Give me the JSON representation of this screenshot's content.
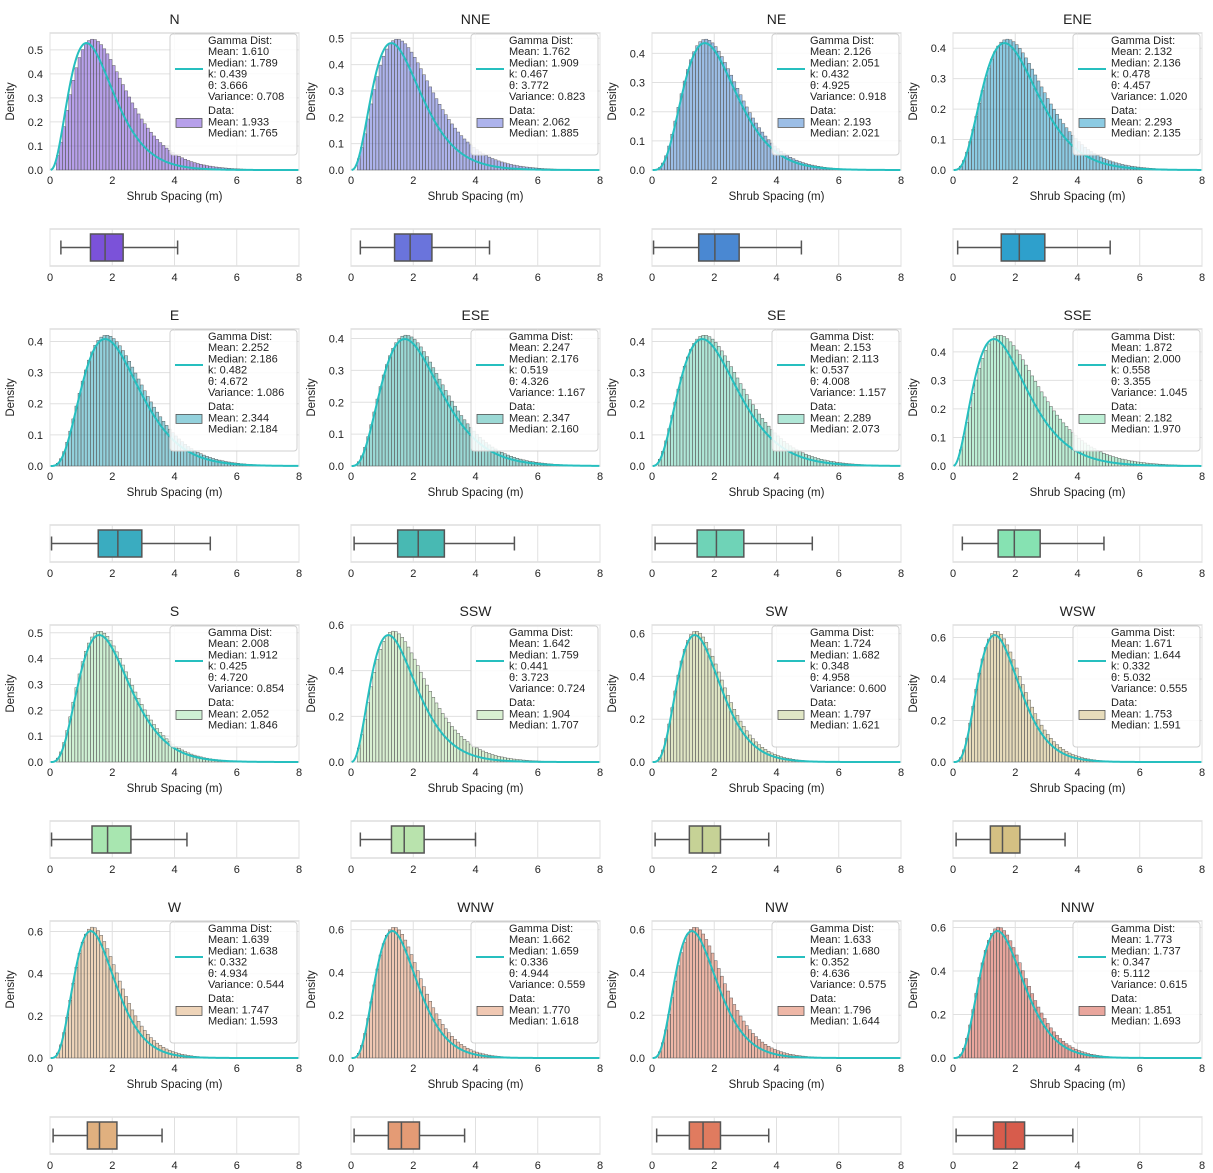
{
  "chart_data": {
    "type": "histogram-boxplot-grid",
    "density_label": "Density",
    "xlabel": "Shrub Spacing (m)",
    "xlim": [
      0,
      8
    ],
    "xticks": [
      0,
      2,
      4,
      6,
      8
    ],
    "fit_color": "#26bfbf",
    "legend_gamma_title": "Gamma Dist:",
    "legend_data_title": "Data:",
    "labels": {
      "mean": "Mean:",
      "median": "Median:",
      "k": "k:",
      "theta": "θ:",
      "variance": "Variance:"
    },
    "panels": [
      {
        "title": "N",
        "color": "#7b52d9",
        "ylim": [
          0,
          0.57
        ],
        "yticks": [
          0.0,
          0.1,
          0.2,
          0.3,
          0.4,
          0.5
        ],
        "gamma": {
          "mean": "1.610",
          "median": "1.789",
          "k": "0.439",
          "theta": "3.666",
          "variance": "0.708"
        },
        "data": {
          "mean": "1.933",
          "median": "1.765"
        },
        "box": {
          "whislo": 0.35,
          "q1": 1.3,
          "med": 1.77,
          "q3": 2.35,
          "whishi": 4.1
        }
      },
      {
        "title": "NNE",
        "color": "#6a74dc",
        "ylim": [
          0,
          0.52
        ],
        "yticks": [
          0.0,
          0.1,
          0.2,
          0.3,
          0.4,
          0.5
        ],
        "gamma": {
          "mean": "1.762",
          "median": "1.909",
          "k": "0.467",
          "theta": "3.772",
          "variance": "0.823"
        },
        "data": {
          "mean": "2.062",
          "median": "1.885"
        },
        "box": {
          "whislo": 0.3,
          "q1": 1.4,
          "med": 1.9,
          "q3": 2.6,
          "whishi": 4.45
        }
      },
      {
        "title": "NE",
        "color": "#4a88d2",
        "ylim": [
          0,
          0.47
        ],
        "yticks": [
          0.0,
          0.1,
          0.2,
          0.3,
          0.4
        ],
        "gamma": {
          "mean": "2.126",
          "median": "2.051",
          "k": "0.432",
          "theta": "4.925",
          "variance": "0.918"
        },
        "data": {
          "mean": "2.193",
          "median": "2.021"
        },
        "box": {
          "whislo": 0.05,
          "q1": 1.5,
          "med": 2.02,
          "q3": 2.8,
          "whishi": 4.8
        }
      },
      {
        "title": "ENE",
        "color": "#2ea0cc",
        "ylim": [
          0,
          0.45
        ],
        "yticks": [
          0.0,
          0.1,
          0.2,
          0.3,
          0.4
        ],
        "gamma": {
          "mean": "2.132",
          "median": "2.136",
          "k": "0.478",
          "theta": "4.457",
          "variance": "1.020"
        },
        "data": {
          "mean": "2.293",
          "median": "2.135"
        },
        "box": {
          "whislo": 0.15,
          "q1": 1.55,
          "med": 2.13,
          "q3": 2.95,
          "whishi": 5.05
        }
      },
      {
        "title": "E",
        "color": "#3aacc0",
        "ylim": [
          0,
          0.44
        ],
        "yticks": [
          0.0,
          0.1,
          0.2,
          0.3,
          0.4
        ],
        "gamma": {
          "mean": "2.252",
          "median": "2.186",
          "k": "0.482",
          "theta": "4.672",
          "variance": "1.086"
        },
        "data": {
          "mean": "2.344",
          "median": "2.184"
        },
        "box": {
          "whislo": 0.05,
          "q1": 1.55,
          "med": 2.18,
          "q3": 2.95,
          "whishi": 5.15
        }
      },
      {
        "title": "ESE",
        "color": "#48b9b3",
        "ylim": [
          0,
          0.43
        ],
        "yticks": [
          0.0,
          0.1,
          0.2,
          0.3,
          0.4
        ],
        "gamma": {
          "mean": "2.247",
          "median": "2.176",
          "k": "0.519",
          "theta": "4.326",
          "variance": "1.167"
        },
        "data": {
          "mean": "2.347",
          "median": "2.160"
        },
        "box": {
          "whislo": 0.1,
          "q1": 1.5,
          "med": 2.16,
          "q3": 3.0,
          "whishi": 5.25
        }
      },
      {
        "title": "SE",
        "color": "#6fd3b7",
        "ylim": [
          0,
          0.44
        ],
        "yticks": [
          0.0,
          0.1,
          0.2,
          0.3,
          0.4
        ],
        "gamma": {
          "mean": "2.153",
          "median": "2.113",
          "k": "0.537",
          "theta": "4.008",
          "variance": "1.157"
        },
        "data": {
          "mean": "2.289",
          "median": "2.073"
        },
        "box": {
          "whislo": 0.1,
          "q1": 1.45,
          "med": 2.07,
          "q3": 2.95,
          "whishi": 5.15
        }
      },
      {
        "title": "SSE",
        "color": "#86e2b2",
        "ylim": [
          0,
          0.48
        ],
        "yticks": [
          0.0,
          0.1,
          0.2,
          0.3,
          0.4
        ],
        "gamma": {
          "mean": "1.872",
          "median": "2.000",
          "k": "0.558",
          "theta": "3.355",
          "variance": "1.045"
        },
        "data": {
          "mean": "2.182",
          "median": "1.970"
        },
        "box": {
          "whislo": 0.3,
          "q1": 1.45,
          "med": 1.97,
          "q3": 2.8,
          "whishi": 4.85
        }
      },
      {
        "title": "S",
        "color": "#a8e6b0",
        "ylim": [
          0,
          0.53
        ],
        "yticks": [
          0.0,
          0.1,
          0.2,
          0.3,
          0.4,
          0.5
        ],
        "gamma": {
          "mean": "2.008",
          "median": "1.912",
          "k": "0.425",
          "theta": "4.720",
          "variance": "0.854"
        },
        "data": {
          "mean": "2.052",
          "median": "1.846"
        },
        "box": {
          "whislo": 0.05,
          "q1": 1.35,
          "med": 1.85,
          "q3": 2.6,
          "whishi": 4.4
        }
      },
      {
        "title": "SSW",
        "color": "#b9e3ad",
        "ylim": [
          0,
          0.6
        ],
        "yticks": [
          0.0,
          0.2,
          0.4,
          0.6
        ],
        "gamma": {
          "mean": "1.642",
          "median": "1.759",
          "k": "0.441",
          "theta": "3.723",
          "variance": "0.724"
        },
        "data": {
          "mean": "1.904",
          "median": "1.707"
        },
        "box": {
          "whislo": 0.3,
          "q1": 1.3,
          "med": 1.71,
          "q3": 2.35,
          "whishi": 4.0
        }
      },
      {
        "title": "SW",
        "color": "#c6d296",
        "ylim": [
          0,
          0.64
        ],
        "yticks": [
          0.0,
          0.2,
          0.4,
          0.6
        ],
        "gamma": {
          "mean": "1.724",
          "median": "1.682",
          "k": "0.348",
          "theta": "4.958",
          "variance": "0.600"
        },
        "data": {
          "mean": "1.797",
          "median": "1.621"
        },
        "box": {
          "whislo": 0.1,
          "q1": 1.2,
          "med": 1.62,
          "q3": 2.2,
          "whishi": 3.75
        }
      },
      {
        "title": "WSW",
        "color": "#d4c083",
        "ylim": [
          0,
          0.66
        ],
        "yticks": [
          0.0,
          0.2,
          0.4,
          0.6
        ],
        "gamma": {
          "mean": "1.671",
          "median": "1.644",
          "k": "0.332",
          "theta": "5.032",
          "variance": "0.555"
        },
        "data": {
          "mean": "1.753",
          "median": "1.591"
        },
        "box": {
          "whislo": 0.1,
          "q1": 1.2,
          "med": 1.59,
          "q3": 2.15,
          "whishi": 3.6
        }
      },
      {
        "title": "W",
        "color": "#e0b07f",
        "ylim": [
          0,
          0.65
        ],
        "yticks": [
          0.0,
          0.2,
          0.4,
          0.6
        ],
        "gamma": {
          "mean": "1.639",
          "median": "1.638",
          "k": "0.332",
          "theta": "4.934",
          "variance": "0.544"
        },
        "data": {
          "mean": "1.747",
          "median": "1.593"
        },
        "box": {
          "whislo": 0.1,
          "q1": 1.2,
          "med": 1.59,
          "q3": 2.15,
          "whishi": 3.6
        }
      },
      {
        "title": "WNW",
        "color": "#e49b75",
        "ylim": [
          0,
          0.64
        ],
        "yticks": [
          0.0,
          0.2,
          0.4,
          0.6
        ],
        "gamma": {
          "mean": "1.662",
          "median": "1.659",
          "k": "0.336",
          "theta": "4.944",
          "variance": "0.559"
        },
        "data": {
          "mean": "1.770",
          "median": "1.618"
        },
        "box": {
          "whislo": 0.1,
          "q1": 1.2,
          "med": 1.62,
          "q3": 2.2,
          "whishi": 3.65
        }
      },
      {
        "title": "NW",
        "color": "#e07b5f",
        "ylim": [
          0,
          0.64
        ],
        "yticks": [
          0.0,
          0.2,
          0.4,
          0.6
        ],
        "gamma": {
          "mean": "1.633",
          "median": "1.680",
          "k": "0.352",
          "theta": "4.636",
          "variance": "0.575"
        },
        "data": {
          "mean": "1.796",
          "median": "1.644"
        },
        "box": {
          "whislo": 0.15,
          "q1": 1.2,
          "med": 1.64,
          "q3": 2.2,
          "whishi": 3.75
        }
      },
      {
        "title": "NNW",
        "color": "#d75c4c",
        "ylim": [
          0,
          0.63
        ],
        "yticks": [
          0.0,
          0.2,
          0.4,
          0.6
        ],
        "gamma": {
          "mean": "1.773",
          "median": "1.737",
          "k": "0.347",
          "theta": "5.112",
          "variance": "0.615"
        },
        "data": {
          "mean": "1.851",
          "median": "1.693"
        },
        "box": {
          "whislo": 0.1,
          "q1": 1.3,
          "med": 1.69,
          "q3": 2.3,
          "whishi": 3.85
        }
      }
    ]
  }
}
